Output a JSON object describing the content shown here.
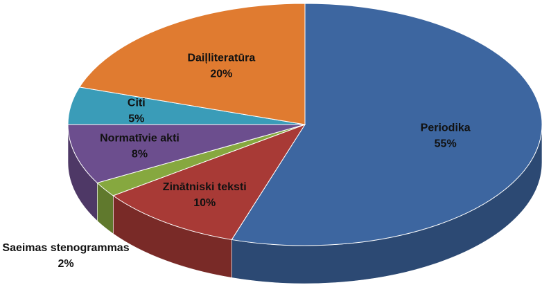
{
  "chart_data": {
    "type": "pie3d",
    "categories": [
      "Periodika",
      "Zinātniski teksti",
      "Saeimas stenogrammas",
      "Normatīvie akti",
      "Citi",
      "Daiļliteratūra"
    ],
    "values": [
      55,
      10,
      2,
      8,
      5,
      20
    ],
    "value_labels": [
      "55%",
      "10%",
      "2%",
      "8%",
      "5%",
      "20%"
    ],
    "colors": [
      "#3d66a0",
      "#a83a36",
      "#86a83f",
      "#6c4e8e",
      "#3a9cb8",
      "#e07b30"
    ]
  }
}
